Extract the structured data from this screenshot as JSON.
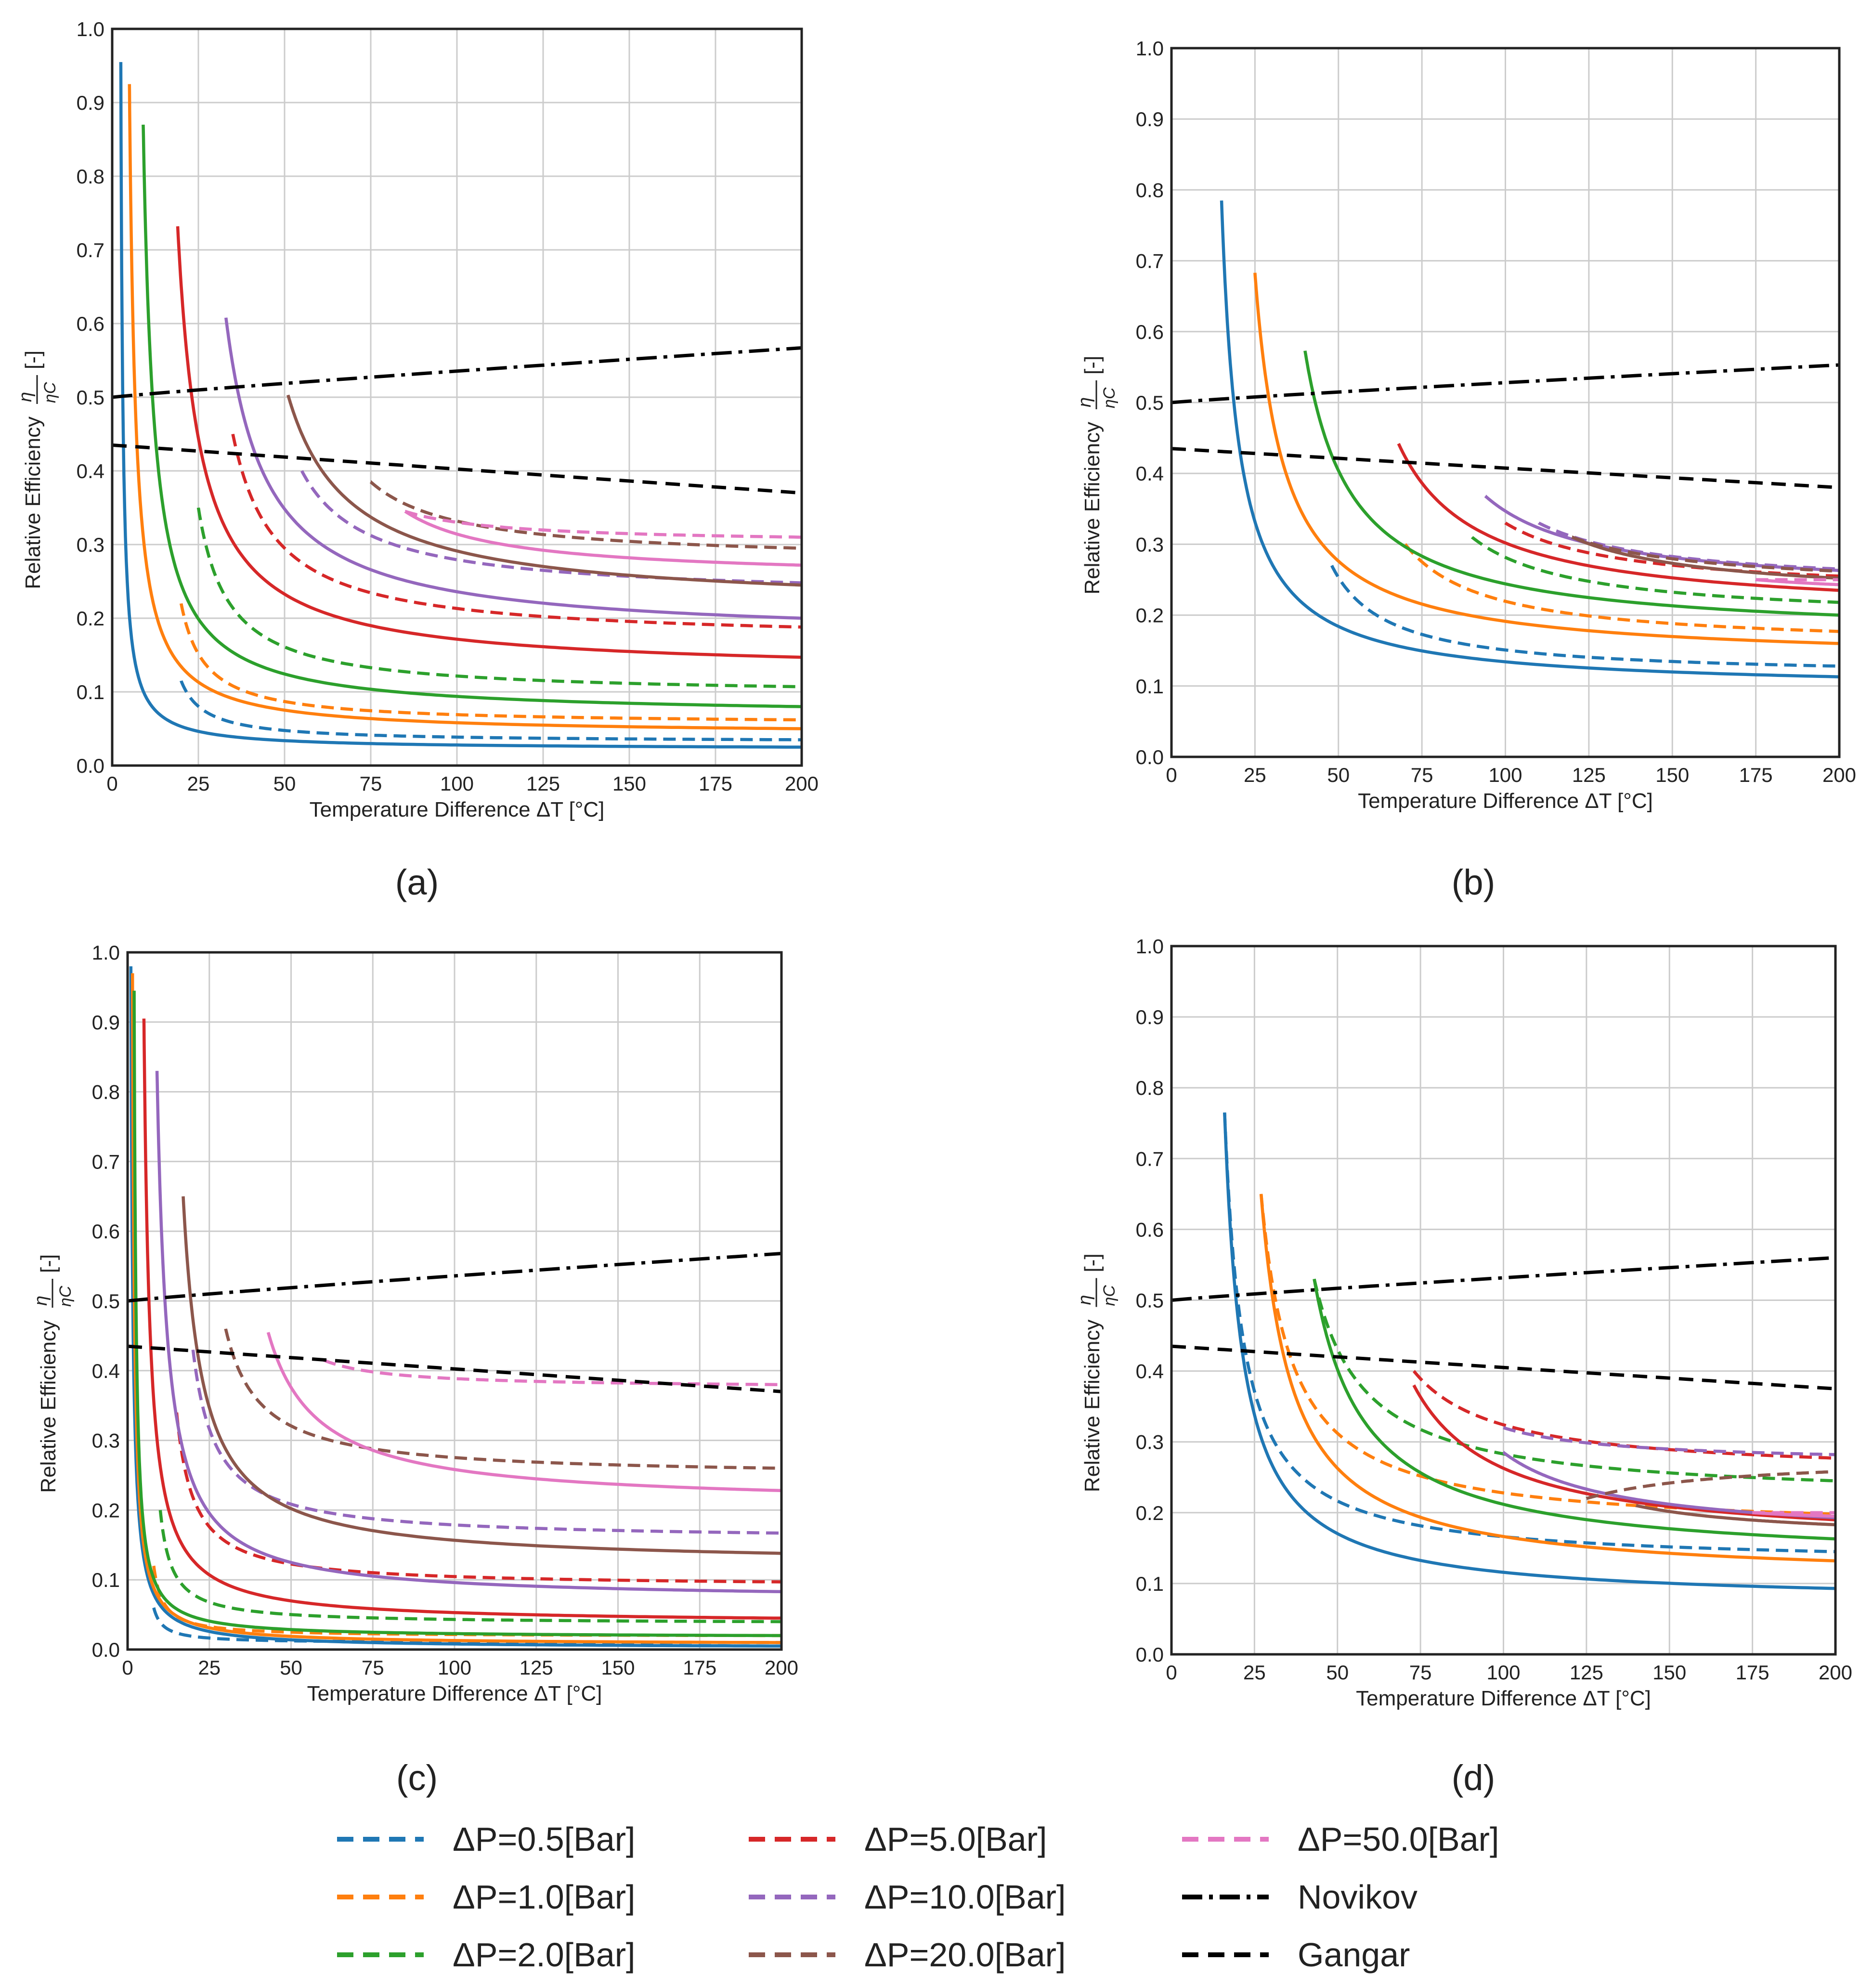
{
  "panel_labels": [
    "(a)",
    "(b)",
    "(c)",
    "(d)"
  ],
  "legend": {
    "entries": [
      {
        "label": "ΔP=0.5[Bar]",
        "color": "#1f77b4",
        "style": "dashed"
      },
      {
        "label": "ΔP=5.0[Bar]",
        "color": "#d62728",
        "style": "dashed"
      },
      {
        "label": "ΔP=50.0[Bar]",
        "color": "#e377c2",
        "style": "dashed"
      },
      {
        "label": "ΔP=1.0[Bar]",
        "color": "#ff7f0e",
        "style": "dashed"
      },
      {
        "label": "ΔP=10.0[Bar]",
        "color": "#9467bd",
        "style": "dashed"
      },
      {
        "label": "Novikov",
        "color": "#000000",
        "style": "dashdot"
      },
      {
        "label": "ΔP=2.0[Bar]",
        "color": "#2ca02c",
        "style": "dashed"
      },
      {
        "label": "ΔP=20.0[Bar]",
        "color": "#8c564b",
        "style": "dashed"
      },
      {
        "label": "Gangar",
        "color": "#000000",
        "style": "dashed"
      }
    ]
  },
  "chart_data": [
    {
      "type": "line",
      "panel": "(a)",
      "xlabel": "Temperature Difference ΔT [°C]",
      "ylabel_text": "Relative Efficiency",
      "ylabel_fraction": {
        "num": "η",
        "den": "ηC"
      },
      "ylabel_unit": "[-]",
      "xlim": [
        0,
        200
      ],
      "ylim": [
        0,
        1.0
      ],
      "grid": true,
      "xticks": [
        "0",
        "25",
        "50",
        "75",
        "100",
        "125",
        "150",
        "175",
        "200"
      ],
      "yticks": [
        "0.0",
        "0.1",
        "0.2",
        "0.3",
        "0.4",
        "0.5",
        "0.6",
        "0.7",
        "0.8",
        "0.9",
        "1.0"
      ],
      "series": [
        {
          "legend": "ΔP=0.5[Bar]",
          "color": "#1f77b4",
          "solid": {
            "x0": 2.5,
            "y0": 0.955,
            "y_end": 0.025
          },
          "dashed": {
            "x0": 20,
            "y0": 0.115,
            "y_end": 0.035
          }
        },
        {
          "legend": "ΔP=1.0[Bar]",
          "color": "#ff7f0e",
          "solid": {
            "x0": 5,
            "y0": 0.925,
            "y_end": 0.05
          },
          "dashed": {
            "x0": 20,
            "y0": 0.22,
            "y_end": 0.062
          }
        },
        {
          "legend": "ΔP=2.0[Bar]",
          "color": "#2ca02c",
          "solid": {
            "x0": 9,
            "y0": 0.87,
            "y_end": 0.08
          },
          "dashed": {
            "x0": 25,
            "y0": 0.35,
            "y_end": 0.107
          }
        },
        {
          "legend": "ΔP=5.0[Bar]",
          "color": "#d62728",
          "solid": {
            "x0": 19,
            "y0": 0.732,
            "y_end": 0.147
          },
          "dashed": {
            "x0": 35,
            "y0": 0.45,
            "y_end": 0.188
          }
        },
        {
          "legend": "ΔP=10.0[Bar]",
          "color": "#9467bd",
          "solid": {
            "x0": 33,
            "y0": 0.608,
            "y_end": 0.2
          },
          "dashed": {
            "x0": 55,
            "y0": 0.4,
            "y_end": 0.248
          }
        },
        {
          "legend": "ΔP=20.0[Bar]",
          "color": "#8c564b",
          "solid": {
            "x0": 51,
            "y0": 0.503,
            "y_end": 0.245
          },
          "dashed": {
            "x0": 75,
            "y0": 0.385,
            "y_end": 0.295
          }
        },
        {
          "legend": "ΔP=50.0[Bar]",
          "color": "#e377c2",
          "solid": {
            "x0": 85,
            "y0": 0.345,
            "y_end": 0.272
          },
          "dashed": {
            "x0": 85,
            "y0": 0.345,
            "y_end": 0.31
          }
        },
        {
          "legend": "Novikov",
          "color": "#000000",
          "y_start": 0.5,
          "y_end": 0.567
        },
        {
          "legend": "Gangar",
          "color": "#000000",
          "y_start": 0.435,
          "y_end": 0.37
        }
      ]
    },
    {
      "type": "line",
      "panel": "(b)",
      "xlabel": "Temperature Difference ΔT [°C]",
      "ylabel_text": "Relative Efficiency",
      "ylabel_fraction": {
        "num": "η",
        "den": "ηC"
      },
      "ylabel_unit": "[-]",
      "xlim": [
        0,
        200
      ],
      "ylim": [
        0,
        1.0
      ],
      "grid": true,
      "xticks": [
        "0",
        "25",
        "50",
        "75",
        "100",
        "125",
        "150",
        "175",
        "200"
      ],
      "yticks": [
        "0.0",
        "0.1",
        "0.2",
        "0.3",
        "0.4",
        "0.5",
        "0.6",
        "0.7",
        "0.8",
        "0.9",
        "1.0"
      ],
      "series": [
        {
          "legend": "ΔP=0.5[Bar]",
          "color": "#1f77b4",
          "solid": {
            "x0": 15,
            "y0": 0.785,
            "y_end": 0.113
          },
          "dashed": {
            "x0": 48,
            "y0": 0.27,
            "y_end": 0.128
          }
        },
        {
          "legend": "ΔP=1.0[Bar]",
          "color": "#ff7f0e",
          "solid": {
            "x0": 25,
            "y0": 0.683,
            "y_end": 0.16
          },
          "dashed": {
            "x0": 70,
            "y0": 0.3,
            "y_end": 0.177
          }
        },
        {
          "legend": "ΔP=2.0[Bar]",
          "color": "#2ca02c",
          "solid": {
            "x0": 40,
            "y0": 0.573,
            "y_end": 0.2
          },
          "dashed": {
            "x0": 90,
            "y0": 0.31,
            "y_end": 0.218
          }
        },
        {
          "legend": "ΔP=5.0[Bar]",
          "color": "#d62728",
          "solid": {
            "x0": 68,
            "y0": 0.442,
            "y_end": 0.235
          },
          "dashed": {
            "x0": 100,
            "y0": 0.33,
            "y_end": 0.255
          }
        },
        {
          "legend": "ΔP=10.0[Bar]",
          "color": "#9467bd",
          "solid": {
            "x0": 94,
            "y0": 0.368,
            "y_end": 0.263
          },
          "dashed": {
            "x0": 110,
            "y0": 0.33,
            "y_end": 0.265
          }
        },
        {
          "legend": "ΔP=20.0[Bar]",
          "color": "#8c564b",
          "solid": {
            "x0": 120,
            "y0": 0.31,
            "y_end": 0.252
          },
          "dashed": {
            "x0": 120,
            "y0": 0.31,
            "y_end": 0.262
          }
        },
        {
          "legend": "ΔP=50.0[Bar]",
          "color": "#e377c2",
          "solid": {
            "x0": 175,
            "y0": 0.25,
            "y_end": 0.243
          },
          "dashed": {
            "x0": 175,
            "y0": 0.25,
            "y_end": 0.25
          }
        },
        {
          "legend": "Novikov",
          "color": "#000000",
          "y_start": 0.5,
          "y_end": 0.553
        },
        {
          "legend": "Gangar",
          "color": "#000000",
          "y_start": 0.435,
          "y_end": 0.38
        }
      ]
    },
    {
      "type": "line",
      "panel": "(c)",
      "xlabel": "Temperature Difference ΔT [°C]",
      "ylabel_text": "Relative Efficiency",
      "ylabel_fraction": {
        "num": "η",
        "den": "ηC"
      },
      "ylabel_unit": "[-]",
      "xlim": [
        0,
        200
      ],
      "ylim": [
        0,
        1.0
      ],
      "grid": true,
      "xticks": [
        "0",
        "25",
        "50",
        "75",
        "100",
        "125",
        "150",
        "175",
        "200"
      ],
      "yticks": [
        "0.0",
        "0.1",
        "0.2",
        "0.3",
        "0.4",
        "0.5",
        "0.6",
        "0.7",
        "0.8",
        "0.9",
        "1.0"
      ],
      "series": [
        {
          "legend": "ΔP=0.5[Bar]",
          "color": "#1f77b4",
          "solid": {
            "x0": 1,
            "y0": 0.98,
            "y_end": 0.005
          },
          "dashed": {
            "x0": 8,
            "y0": 0.06,
            "y_end": 0.01
          }
        },
        {
          "legend": "ΔP=1.0[Bar]",
          "color": "#ff7f0e",
          "solid": {
            "x0": 1.5,
            "y0": 0.97,
            "y_end": 0.01
          },
          "dashed": {
            "x0": 8,
            "y0": 0.12,
            "y_end": 0.02
          }
        },
        {
          "legend": "ΔP=2.0[Bar]",
          "color": "#2ca02c",
          "solid": {
            "x0": 2,
            "y0": 0.945,
            "y_end": 0.02
          },
          "dashed": {
            "x0": 10,
            "y0": 0.2,
            "y_end": 0.04
          }
        },
        {
          "legend": "ΔP=5.0[Bar]",
          "color": "#d62728",
          "solid": {
            "x0": 5,
            "y0": 0.905,
            "y_end": 0.045
          },
          "dashed": {
            "x0": 15,
            "y0": 0.34,
            "y_end": 0.097
          }
        },
        {
          "legend": "ΔP=10.0[Bar]",
          "color": "#9467bd",
          "solid": {
            "x0": 9,
            "y0": 0.83,
            "y_end": 0.083
          },
          "dashed": {
            "x0": 20,
            "y0": 0.43,
            "y_end": 0.167
          }
        },
        {
          "legend": "ΔP=20.0[Bar]",
          "color": "#8c564b",
          "solid": {
            "x0": 17,
            "y0": 0.65,
            "y_end": 0.138
          },
          "dashed": {
            "x0": 30,
            "y0": 0.46,
            "y_end": 0.26
          }
        },
        {
          "legend": "ΔP=50.0[Bar]",
          "color": "#e377c2",
          "solid": {
            "x0": 43,
            "y0": 0.455,
            "y_end": 0.228
          },
          "dashed": {
            "x0": 60,
            "y0": 0.415,
            "y_end": 0.38
          }
        },
        {
          "legend": "Novikov",
          "color": "#000000",
          "y_start": 0.5,
          "y_end": 0.568
        },
        {
          "legend": "Gangar",
          "color": "#000000",
          "y_start": 0.435,
          "y_end": 0.37
        }
      ]
    },
    {
      "type": "line",
      "panel": "(d)",
      "xlabel": "Temperature Difference ΔT [°C]",
      "ylabel_text": "Relative Efficiency",
      "ylabel_fraction": {
        "num": "η",
        "den": "ηC"
      },
      "ylabel_unit": "[-]",
      "xlim": [
        0,
        200
      ],
      "ylim": [
        0,
        1.0
      ],
      "grid": true,
      "xticks": [
        "0",
        "25",
        "50",
        "75",
        "100",
        "125",
        "150",
        "175",
        "200"
      ],
      "yticks": [
        "0.0",
        "0.1",
        "0.2",
        "0.3",
        "0.4",
        "0.5",
        "0.6",
        "0.7",
        "0.8",
        "0.9",
        "1.0"
      ],
      "series": [
        {
          "legend": "ΔP=0.5[Bar]",
          "color": "#1f77b4",
          "solid": {
            "x0": 16,
            "y0": 0.765,
            "y_end": 0.093
          },
          "dashed": {
            "x0": 16,
            "y0": 0.765,
            "y_end": 0.145
          }
        },
        {
          "legend": "ΔP=1.0[Bar]",
          "color": "#ff7f0e",
          "solid": {
            "x0": 27,
            "y0": 0.65,
            "y_end": 0.132
          },
          "dashed": {
            "x0": 27,
            "y0": 0.65,
            "y_end": 0.198
          }
        },
        {
          "legend": "ΔP=2.0[Bar]",
          "color": "#2ca02c",
          "solid": {
            "x0": 43,
            "y0": 0.53,
            "y_end": 0.163
          },
          "dashed": {
            "x0": 43,
            "y0": 0.53,
            "y_end": 0.245
          }
        },
        {
          "legend": "ΔP=5.0[Bar]",
          "color": "#d62728",
          "solid": {
            "x0": 73,
            "y0": 0.38,
            "y_end": 0.19
          },
          "dashed": {
            "x0": 73,
            "y0": 0.4,
            "y_end": 0.277
          }
        },
        {
          "legend": "ΔP=10.0[Bar]",
          "color": "#9467bd",
          "solid": {
            "x0": 100,
            "y0": 0.285,
            "y_end": 0.193
          },
          "dashed": {
            "x0": 100,
            "y0": 0.32,
            "y_end": 0.282
          }
        },
        {
          "legend": "ΔP=20.0[Bar]",
          "color": "#8c564b",
          "solid": {
            "x0": 140,
            "y0": 0.21,
            "y_end": 0.183
          },
          "dashed": {
            "x0": 125,
            "y0": 0.22,
            "y_end": 0.258
          }
        },
        {
          "legend": "ΔP=50.0[Bar]",
          "color": "#e377c2",
          "solid": {
            "x0": 175,
            "y0": 0.2,
            "y_end": 0.195
          },
          "dashed": {
            "x0": 175,
            "y0": 0.2,
            "y_end": 0.2
          }
        },
        {
          "legend": "Novikov",
          "color": "#000000",
          "y_start": 0.5,
          "y_end": 0.56
        },
        {
          "legend": "Gangar",
          "color": "#000000",
          "y_start": 0.435,
          "y_end": 0.375
        }
      ]
    }
  ]
}
